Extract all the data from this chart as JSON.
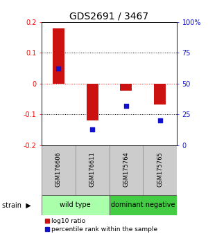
{
  "title": "GDS2691 / 3467",
  "samples": [
    "GSM176606",
    "GSM176611",
    "GSM175764",
    "GSM175765"
  ],
  "log10_ratios": [
    0.18,
    -0.12,
    -0.022,
    -0.068
  ],
  "percentile_ranks": [
    62,
    13,
    32,
    20
  ],
  "ylim_left": [
    -0.2,
    0.2
  ],
  "ylim_right": [
    0,
    100
  ],
  "yticks_left": [
    -0.2,
    -0.1,
    0.0,
    0.1,
    0.2
  ],
  "ytick_labels_left": [
    "-0.2",
    "-0.1",
    "0",
    "0.1",
    "0.2"
  ],
  "yticks_right": [
    0,
    25,
    50,
    75,
    100
  ],
  "ytick_labels_right": [
    "0",
    "25",
    "50",
    "75",
    "100%"
  ],
  "hlines_black": [
    -0.1,
    0.1
  ],
  "hline_red": 0.0,
  "bar_color": "#cc1111",
  "dot_color": "#1111cc",
  "groups": [
    {
      "label": "wild type",
      "samples": [
        0,
        1
      ],
      "color": "#aaffaa"
    },
    {
      "label": "dominant negative",
      "samples": [
        2,
        3
      ],
      "color": "#44cc44"
    }
  ],
  "sample_box_color": "#cccccc",
  "sample_box_edge": "#888888",
  "background_color": "#ffffff",
  "bar_width": 0.35,
  "dot_size": 25,
  "title_fontsize": 10,
  "tick_fontsize": 7,
  "sample_fontsize": 6,
  "group_fontsize": 7,
  "legend_fontsize": 6.5
}
